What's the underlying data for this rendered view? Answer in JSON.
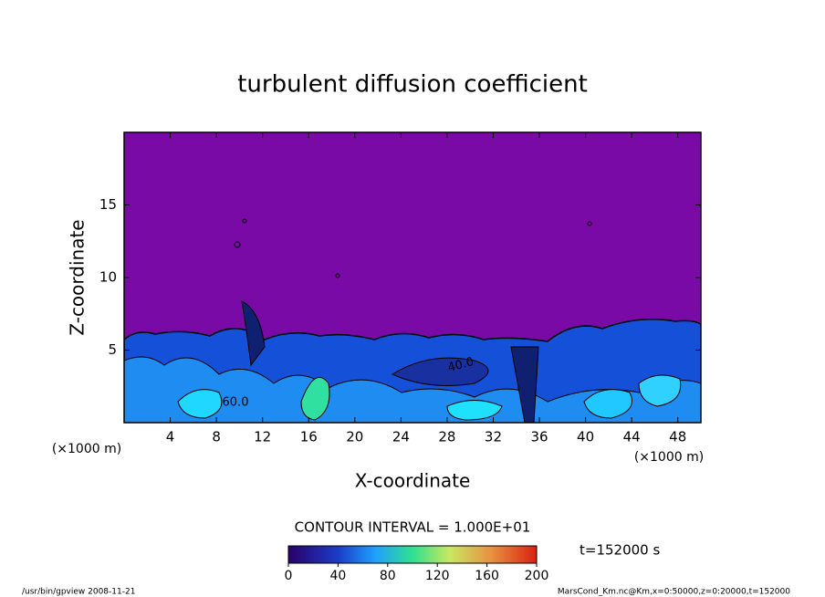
{
  "chart_data": {
    "type": "contour",
    "title": "turbulent diffusion coefficient",
    "x_label": "X-coordinate",
    "y_label": "Z-coordinate",
    "x_unit_labels": [
      "(×1000 m)",
      "(×1000 m)"
    ],
    "xlim": [
      0,
      50
    ],
    "xticks": [
      4,
      8,
      12,
      16,
      20,
      24,
      28,
      32,
      36,
      40,
      44,
      48
    ],
    "ylim": [
      0,
      20
    ],
    "yticks": [
      5,
      10,
      15
    ],
    "contour_labels": [
      "60.0",
      "40.0"
    ],
    "contour_interval_text": "CONTOUR INTERVAL = 1.000E+01",
    "time_label": "t=152000 s",
    "colorbar": {
      "lim": [
        0,
        200
      ],
      "ticks": [
        0,
        40,
        80,
        120,
        160,
        200
      ]
    },
    "footer_left": "/usr/bin/gpview  2008-11-21",
    "footer_right": "MarsCond_Km.nc@Km,x=0:50000,z=0:20000,t=152000"
  }
}
